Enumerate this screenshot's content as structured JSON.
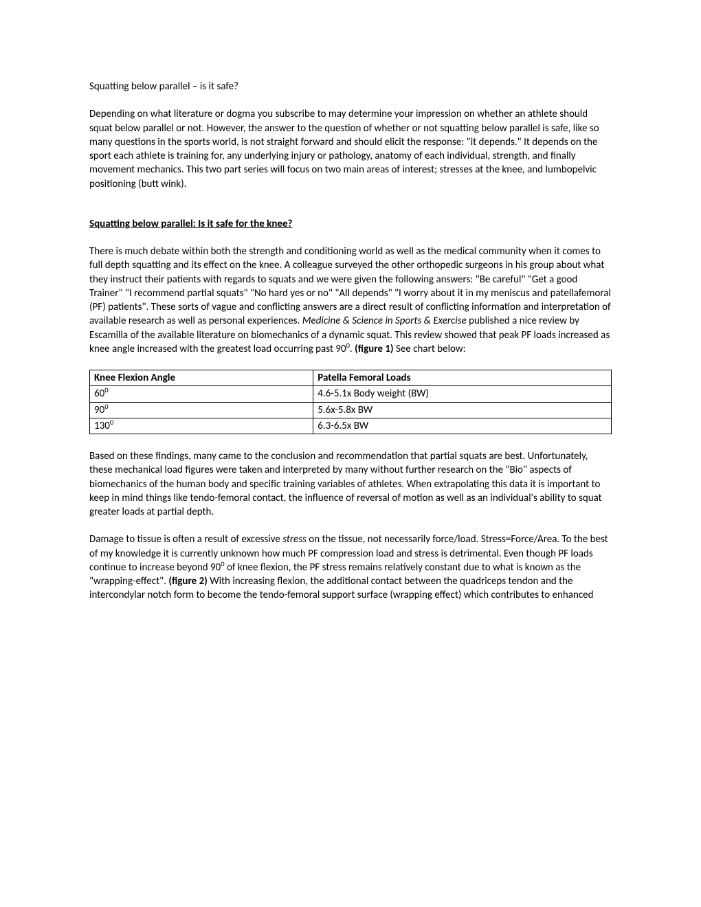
{
  "title": "Squatting below parallel – is it safe?",
  "intro": "Depending on what literature or dogma you subscribe to may determine your impression on whether an athlete should squat below parallel or not.  However, the answer to the question of whether or not squatting below parallel is safe, like so many questions in the sports world, is not straight forward and should elicit the response: \"it depends.\"  It depends on the sport each athlete is training for, any underlying injury or pathology, anatomy of each individual, strength,  and finally movement mechanics.  This two part series will focus on two main areas of interest; stresses at the knee, and lumbopelvic positioning (butt wink).",
  "heading1": "Squatting below parallel: Is it safe for the knee?",
  "p1_a": "There is much debate within both the strength and conditioning world as well as the medical community when it comes to full depth squatting and its effect on the knee.  A colleague surveyed the other orthopedic surgeons in his group about what they instruct their patients with regards to squats and we were given the following answers: \"Be careful\" \"Get a good Trainer\" \"I recommend partial squats\" \"No hard yes or no\" \"All depends\" \"I worry about it in my meniscus and patellafemoral (PF) patients\".  These sorts of vague and conflicting answers are a direct result of conflicting information and interpretation of available research as well as personal experiences.   ",
  "p1_journal": "Medicine & Science in Sports & Exercise",
  "p1_b": " published a nice review by Escamilla of the available literature on biomechanics of a dynamic squat.  This review showed that peak PF loads increased as knee angle increased with the greatest load occurring past 90",
  "p1_sup": "0",
  "p1_c": ". ",
  "p1_fig": "(figure 1)",
  "p1_d": " See chart below:",
  "table": {
    "headers": [
      "Knee Flexion Angle",
      "Patella Femoral Loads"
    ],
    "rows": [
      {
        "angle": "60",
        "sup": "0",
        "load": "4.6-5.1x Body weight (BW)"
      },
      {
        "angle": "90",
        "sup": "0",
        "load": "5.6x-5.8x BW"
      },
      {
        "angle": "130",
        "sup": "0",
        "load": "6.3-6.5x BW"
      }
    ],
    "border_color": "#000000"
  },
  "p2": "Based on these findings, many came to the conclusion and recommendation that partial squats are best.  Unfortunately, these mechanical load figures were taken and interpreted by many without further research on the \"Bio\" aspects of biomechanics of the human body and specific training variables of athletes.  When extrapolating this data it is important to keep in mind things like tendo-femoral contact, the influence of reversal of motion as well as an individual's ability to squat greater loads at partial depth.",
  "p3_a": "Damage to tissue is often a result of excessive ",
  "p3_stress": "stress",
  "p3_b": " on the tissue, not necessarily force/load.  Stress=Force/Area.  To the best of my knowledge it is currently unknown how much PF compression load and stress is detrimental.  Even though PF loads continue to increase beyond 90",
  "p3_sup": "0",
  "p3_c": " of knee flexion, the PF stress remains relatively constant due to what is known as the \"wrapping-effect\".  ",
  "p3_fig": "(figure 2)",
  "p3_d": " With increasing flexion, the additional contact between the quadriceps tendon and the intercondylar notch form to become the tendo-femoral support surface (wrapping effect) which contributes to enhanced"
}
